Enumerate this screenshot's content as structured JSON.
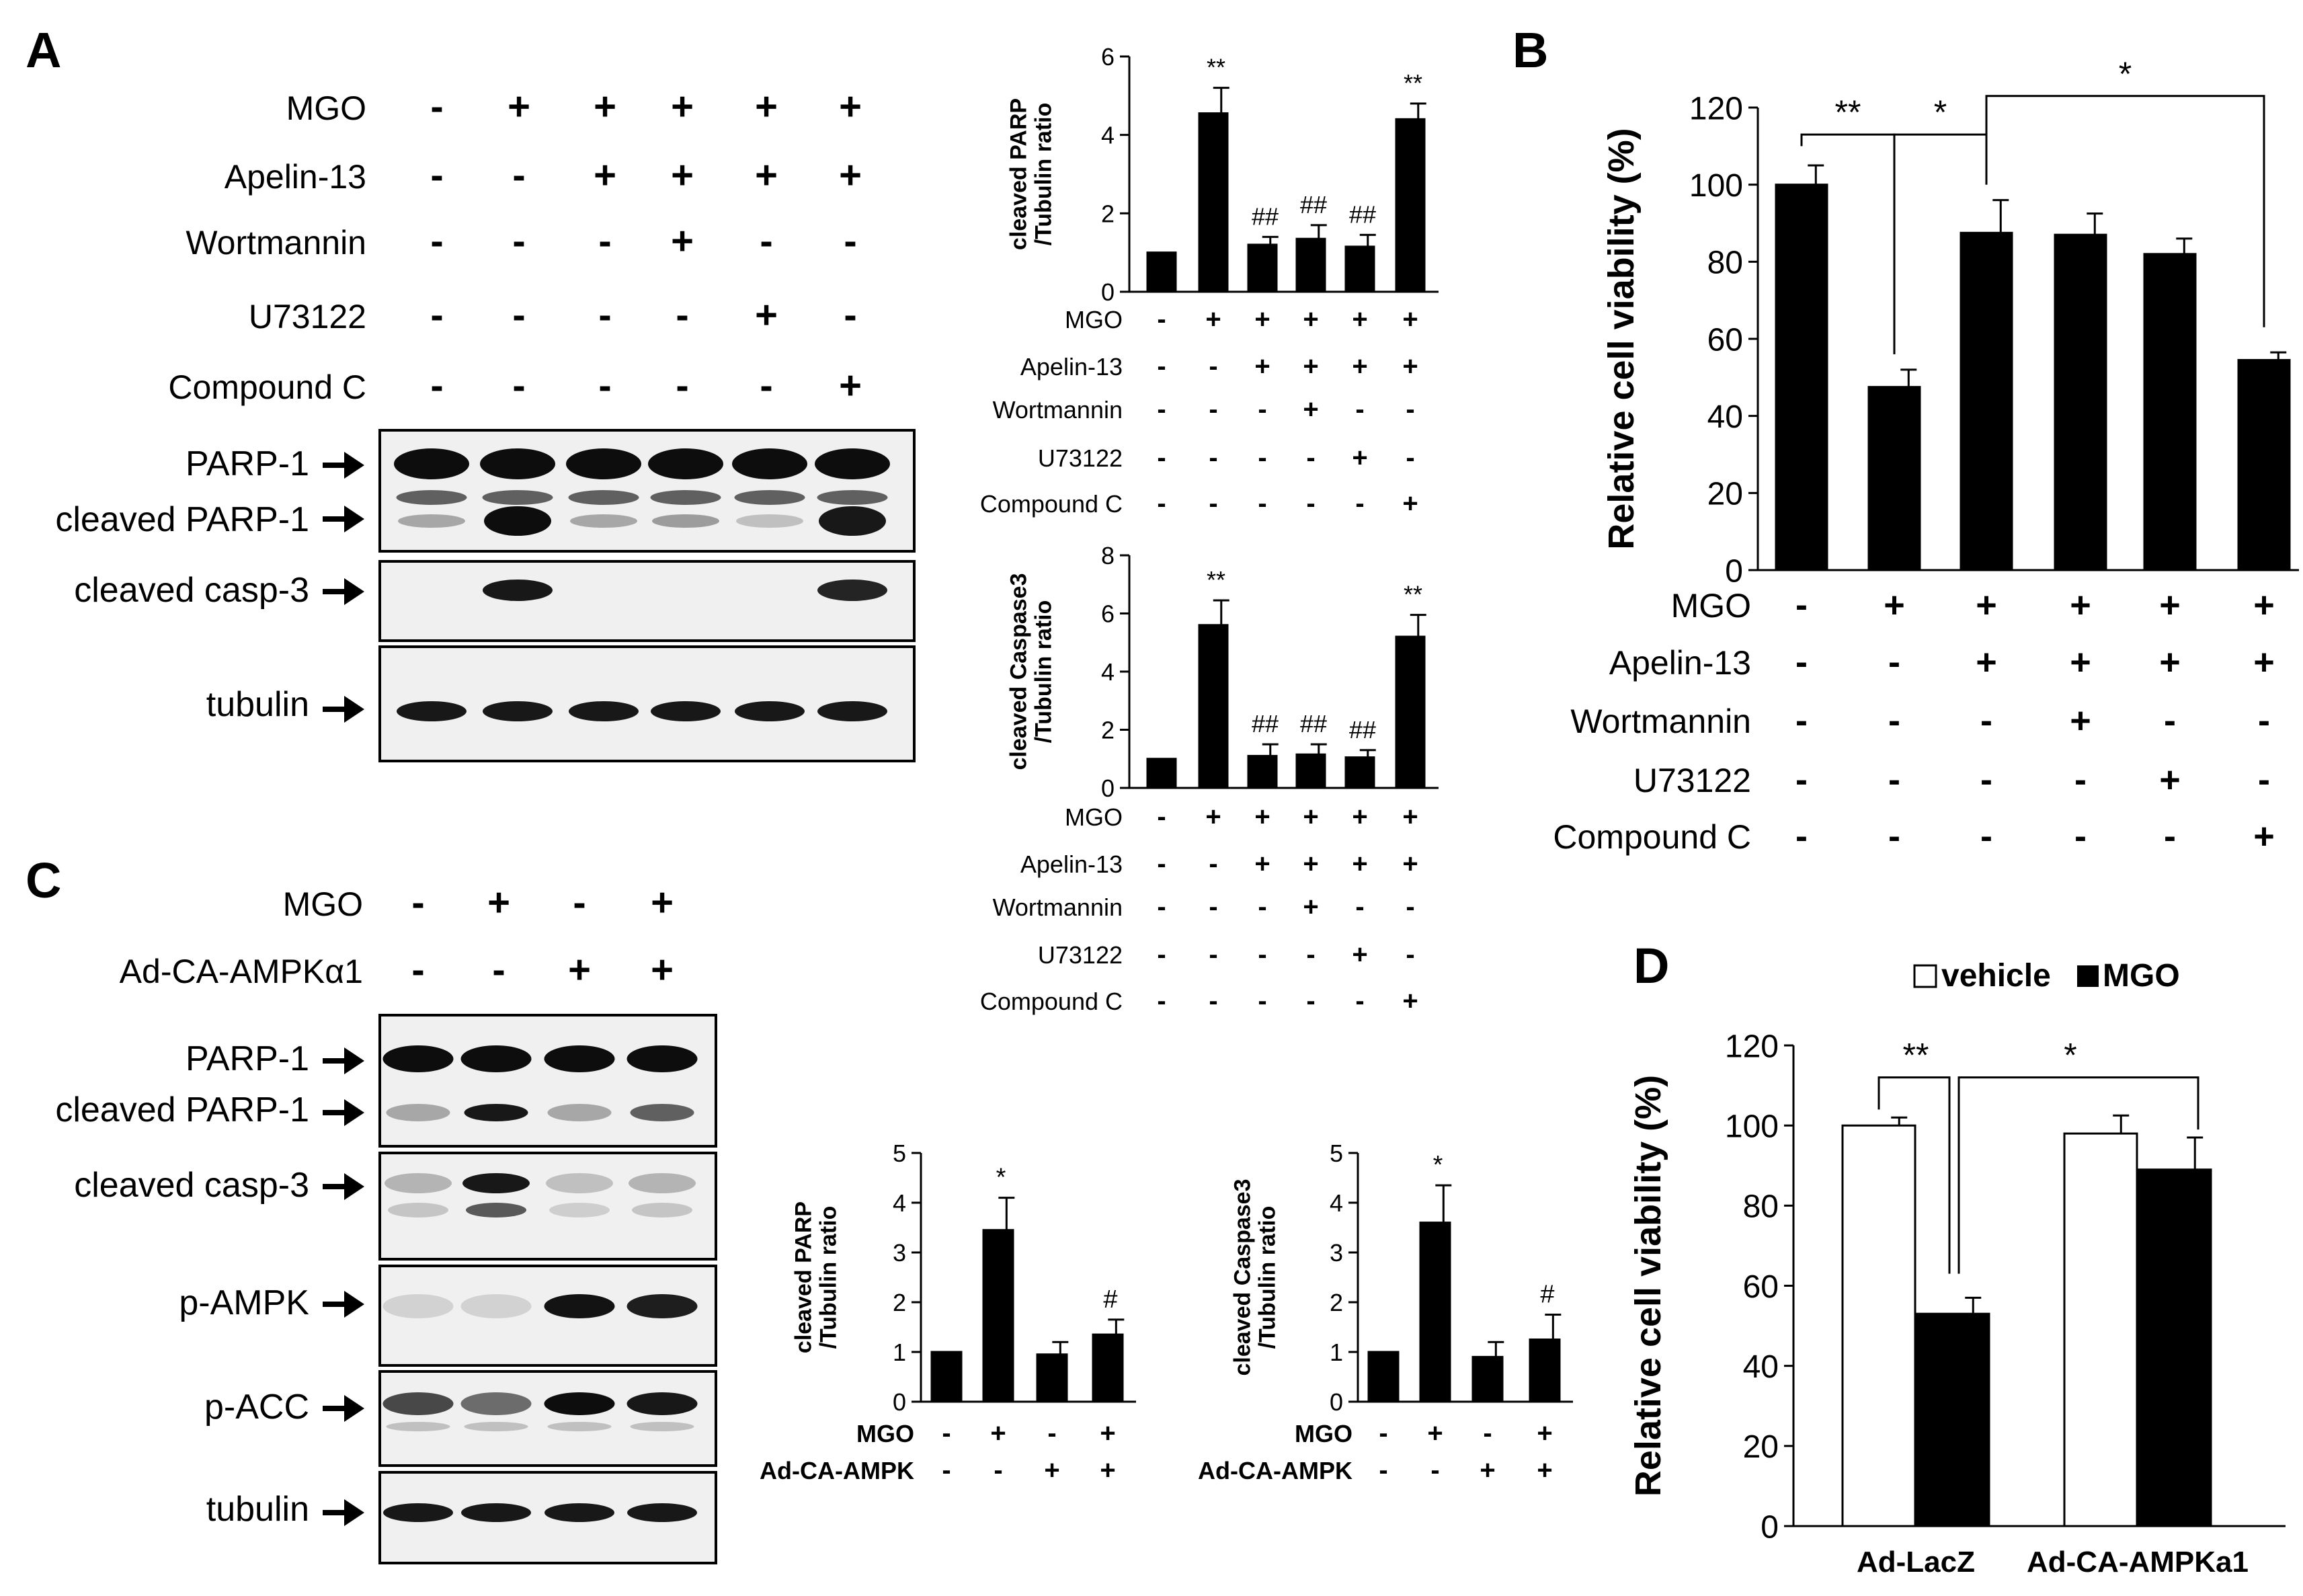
{
  "panels": {
    "A": "A",
    "B": "B",
    "C": "C",
    "D": "D"
  },
  "sym": {
    "plus": "+",
    "minus": "-"
  },
  "treatments_A": [
    {
      "label": "MGO",
      "signs": [
        "-",
        "+",
        "+",
        "+",
        "+",
        "+"
      ]
    },
    {
      "label": "Apelin-13",
      "signs": [
        "-",
        "-",
        "+",
        "+",
        "+",
        "+"
      ]
    },
    {
      "label": "Wortmannin",
      "signs": [
        "-",
        "-",
        "-",
        "+",
        "-",
        "-"
      ]
    },
    {
      "label": "U73122",
      "signs": [
        "-",
        "-",
        "-",
        "-",
        "+",
        "-"
      ]
    },
    {
      "label": "Compound C",
      "signs": [
        "-",
        "-",
        "-",
        "-",
        "-",
        "+"
      ]
    }
  ],
  "treatments_C": [
    {
      "label": "MGO",
      "signs": [
        "-",
        "+",
        "-",
        "+"
      ]
    },
    {
      "label": "Ad-CA-AMPKα1",
      "signs": [
        "-",
        "-",
        "+",
        "+"
      ]
    }
  ],
  "treatments_Cchart": [
    {
      "label": "MGO",
      "signs": [
        "-",
        "+",
        "-",
        "+"
      ]
    },
    {
      "label": "Ad-CA-AMPK",
      "signs": [
        "-",
        "-",
        "+",
        "+"
      ]
    }
  ],
  "blots_A": [
    "PARP-1",
    "cleaved PARP-1",
    "cleaved casp-3",
    "tubulin"
  ],
  "blots_C": [
    "PARP-1",
    "cleaved PARP-1",
    "cleaved casp-3",
    "p-AMPK",
    "p-ACC",
    "tubulin"
  ],
  "chart_data": [
    {
      "id": "A-parp",
      "type": "bar",
      "ylabel": "cleaved PARP /Tubulin ratio",
      "ylabel_lines": [
        "cleaved PARP",
        "/Tubulin ratio"
      ],
      "yticks": [
        0,
        2,
        4,
        6
      ],
      "ylim": [
        0,
        6
      ],
      "values": [
        1.0,
        4.55,
        1.2,
        1.35,
        1.15,
        4.4
      ],
      "errors": [
        0.0,
        0.65,
        0.2,
        0.35,
        0.3,
        0.4
      ],
      "annotations": [
        "",
        "**",
        "##",
        "##",
        "##",
        "**"
      ]
    },
    {
      "id": "A-casp",
      "type": "bar",
      "ylabel": "cleaved Caspase3 /Tubulin ratio",
      "ylabel_lines": [
        "cleaved Caspase3",
        "/Tubulin ratio"
      ],
      "yticks": [
        0,
        2,
        4,
        6,
        8
      ],
      "ylim": [
        0,
        8
      ],
      "values": [
        1.0,
        5.6,
        1.1,
        1.15,
        1.05,
        5.2
      ],
      "errors": [
        0.0,
        0.85,
        0.4,
        0.35,
        0.25,
        0.75
      ],
      "annotations": [
        "",
        "**",
        "##",
        "##",
        "##",
        "**"
      ]
    },
    {
      "id": "B",
      "type": "bar",
      "ylabel": "Relative cell viability (%)",
      "yticks": [
        0,
        20,
        40,
        60,
        80,
        100,
        120
      ],
      "ylim": [
        0,
        120
      ],
      "values": [
        100,
        47.5,
        87.5,
        87,
        82,
        54.5
      ],
      "errors": [
        5,
        4.5,
        8.5,
        5.5,
        4,
        2
      ],
      "brackets": [
        {
          "from": 0,
          "to": 1,
          "label": "**"
        },
        {
          "from": 1,
          "to": 2,
          "label": "*"
        },
        {
          "from": 2,
          "to": 5,
          "label": "*"
        }
      ]
    },
    {
      "id": "C-parp",
      "type": "bar",
      "ylabel": "cleaved PARP /Tubulin ratio",
      "ylabel_lines": [
        "cleaved PARP",
        "/Tubulin ratio"
      ],
      "yticks": [
        0,
        1,
        2,
        3,
        4,
        5
      ],
      "ylim": [
        0,
        5
      ],
      "values": [
        1.0,
        3.45,
        0.95,
        1.35
      ],
      "errors": [
        0.0,
        0.65,
        0.25,
        0.3
      ],
      "annotations": [
        "",
        "*",
        "",
        "#"
      ]
    },
    {
      "id": "C-casp",
      "type": "bar",
      "ylabel": "cleaved Caspase3 /Tubulin ratio",
      "ylabel_lines": [
        "cleaved Caspase3",
        "/Tubulin ratio"
      ],
      "yticks": [
        0,
        1,
        2,
        3,
        4,
        5
      ],
      "ylim": [
        0,
        5
      ],
      "values": [
        1.0,
        3.6,
        0.9,
        1.25
      ],
      "errors": [
        0.0,
        0.75,
        0.3,
        0.5
      ],
      "annotations": [
        "",
        "*",
        "",
        "#"
      ]
    },
    {
      "id": "D",
      "type": "bar",
      "ylabel": "Relative cell viability (%)",
      "yticks": [
        0,
        20,
        40,
        60,
        80,
        100,
        120
      ],
      "ylim": [
        0,
        120
      ],
      "categories": [
        "Ad-LacZ",
        "Ad-CA-AMPKa1"
      ],
      "series": [
        {
          "name": "vehicle",
          "values": [
            100,
            98
          ],
          "errors": [
            2,
            4.5
          ]
        },
        {
          "name": "MGO",
          "values": [
            53,
            89
          ],
          "errors": [
            4,
            8
          ]
        }
      ],
      "legend": "top",
      "brackets": [
        {
          "from": "Ad-LacZ vehicle",
          "to": "Ad-LacZ MGO",
          "label": "**"
        },
        {
          "from": "Ad-LacZ MGO",
          "to": "Ad-CA-AMPKa1 MGO",
          "label": "*"
        }
      ]
    }
  ]
}
